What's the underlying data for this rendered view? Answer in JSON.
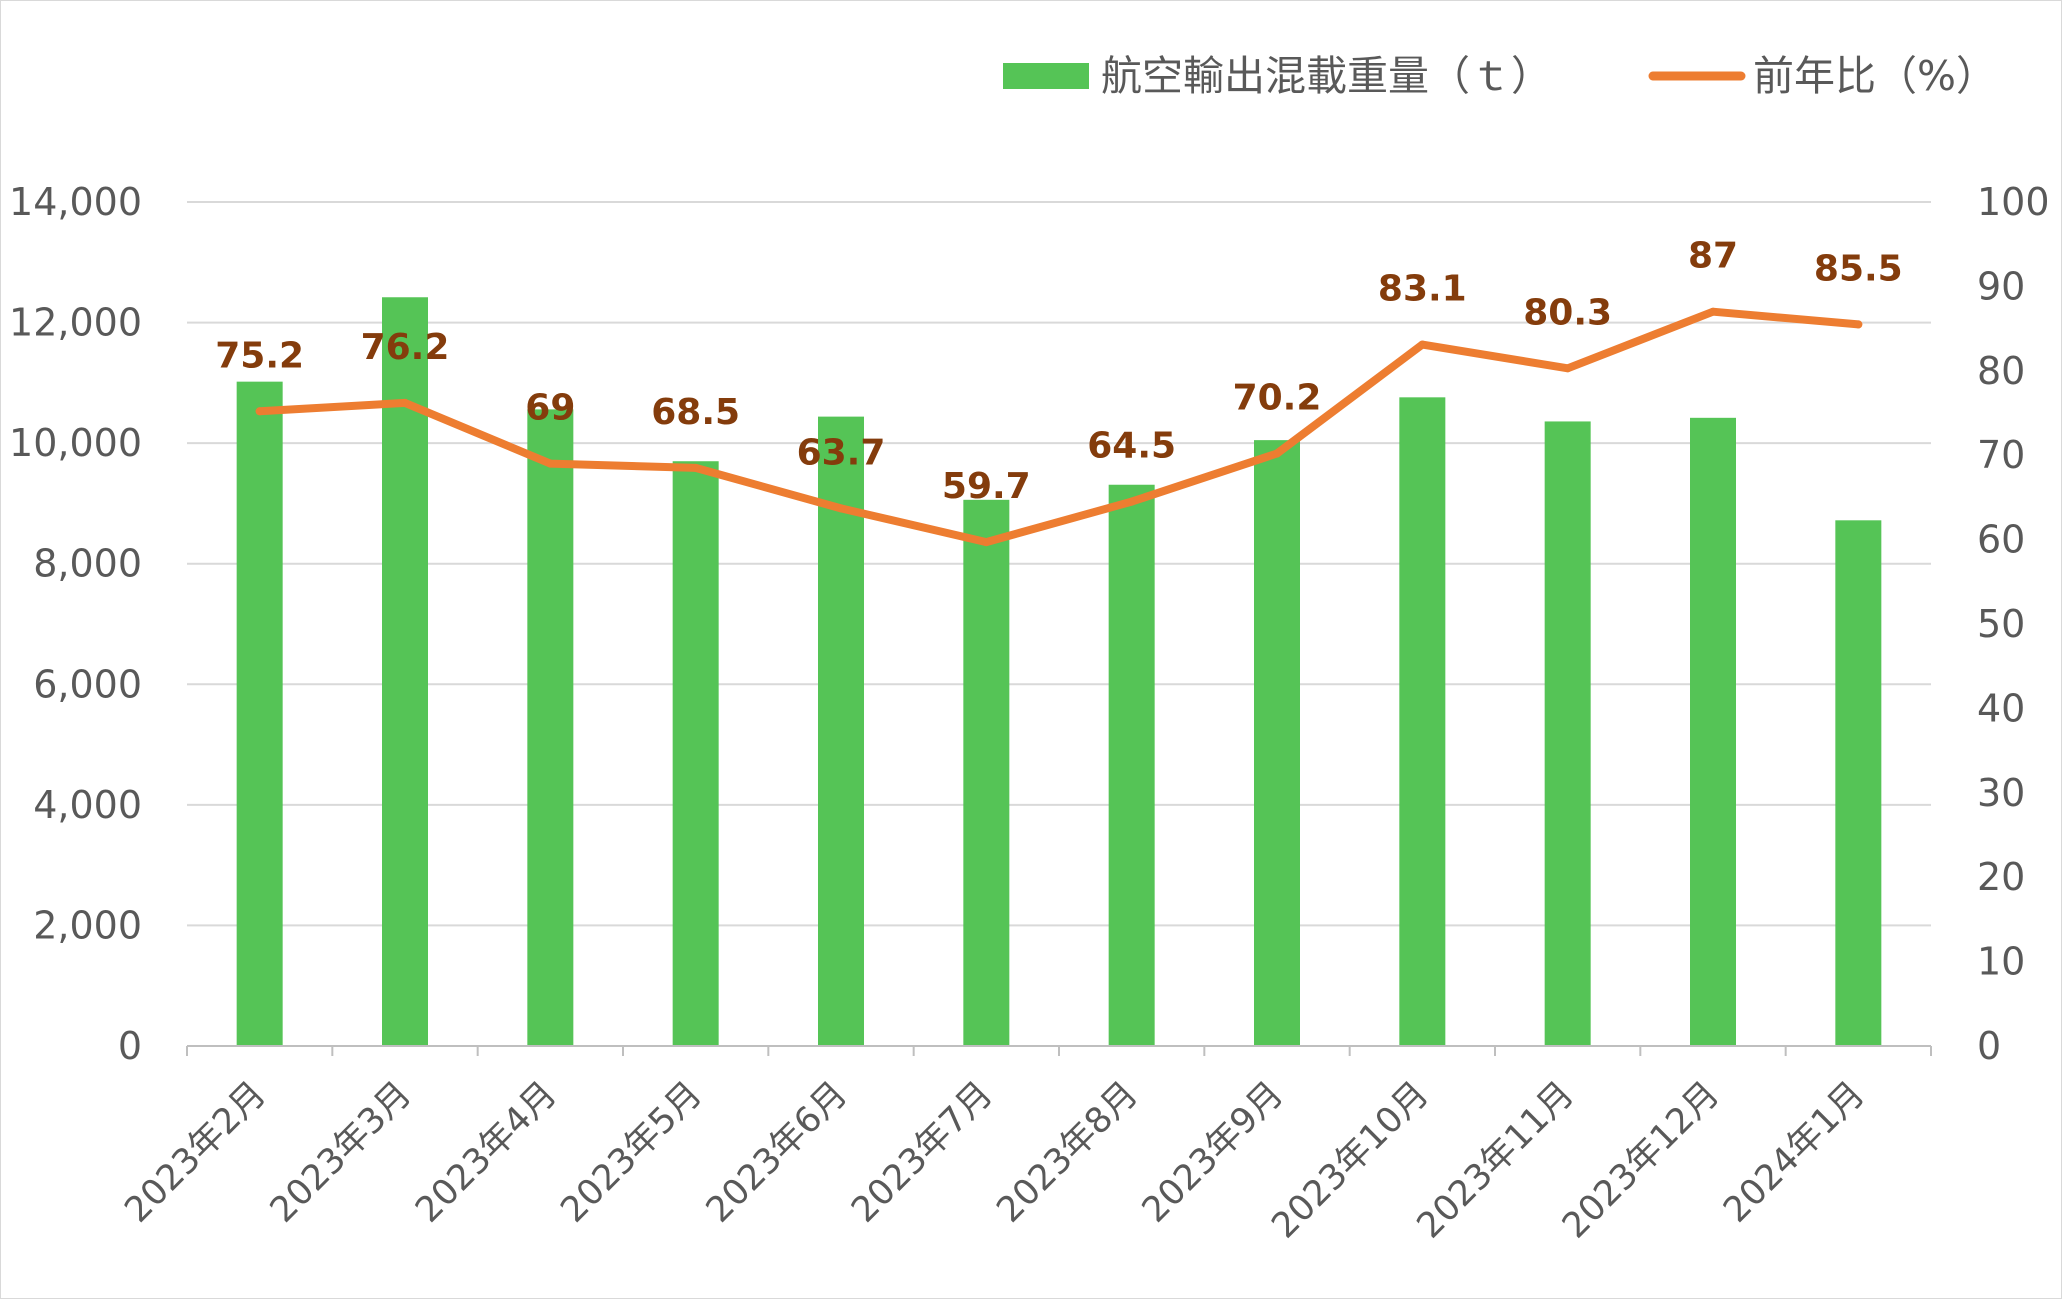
{
  "chart_data": {
    "type": "bar+line",
    "categories": [
      "2023年2月",
      "2023年3月",
      "2023年4月",
      "2023年5月",
      "2023年6月",
      "2023年7月",
      "2023年8月",
      "2023年9月",
      "2023年10月",
      "2023年11月",
      "2023年12月",
      "2024年1月"
    ],
    "series": [
      {
        "name": "航空輸出混載重量（ｔ）",
        "type": "bar",
        "axis": "left",
        "color": "#55c456",
        "values": [
          11020,
          12420,
          10560,
          9700,
          10440,
          9060,
          9310,
          10050,
          10760,
          10360,
          10420,
          8720
        ]
      },
      {
        "name": "前年比（%）",
        "type": "line",
        "axis": "right",
        "color": "#ed7d31",
        "values": [
          75.2,
          76.2,
          69,
          68.5,
          63.7,
          59.7,
          64.5,
          70.2,
          83.1,
          80.3,
          87,
          85.5
        ],
        "data_labels": [
          "75.2",
          "76.2",
          "69",
          "68.5",
          "63.7",
          "59.7",
          "64.5",
          "70.2",
          "83.1",
          "80.3",
          "87",
          "85.5"
        ],
        "label_color": "#843c0c"
      }
    ],
    "y_left": {
      "min": 0,
      "max": 14000,
      "ticks": [
        "0",
        "2,000",
        "4,000",
        "6,000",
        "8,000",
        "10,000",
        "12,000",
        "14,000"
      ]
    },
    "y_right": {
      "min": 0,
      "max": 100,
      "ticks": [
        "0",
        "10",
        "20",
        "30",
        "40",
        "50",
        "60",
        "70",
        "80",
        "90",
        "100"
      ]
    },
    "grid": true,
    "legend": "top-right",
    "title": "",
    "xlabel": "",
    "ylabel": ""
  }
}
